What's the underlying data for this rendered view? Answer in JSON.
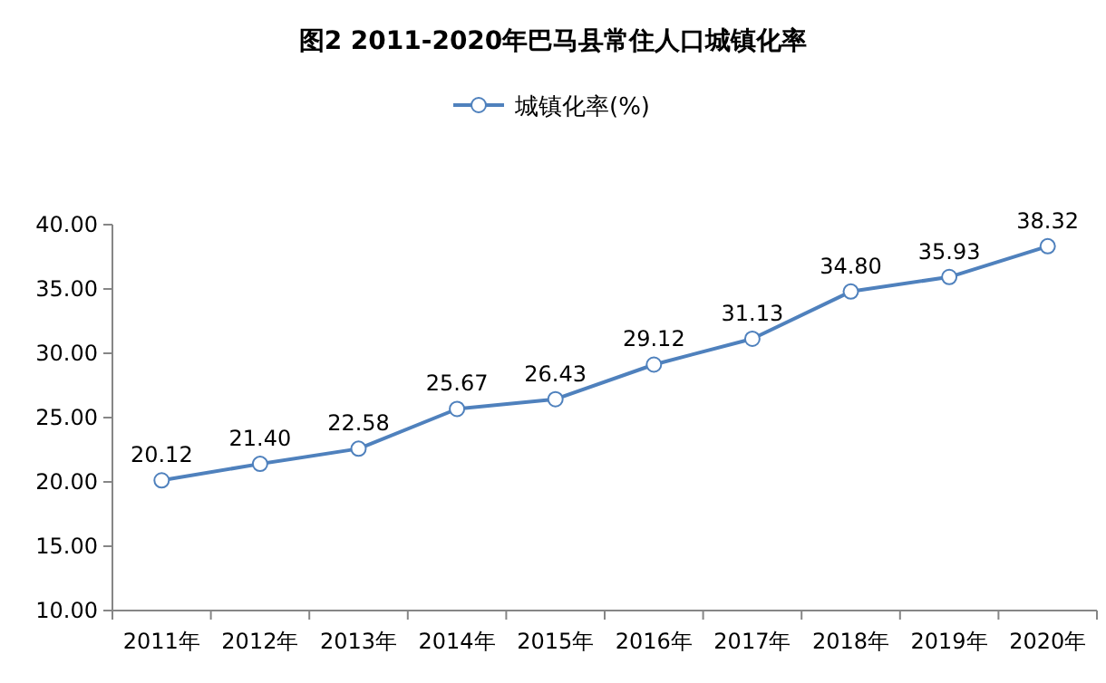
{
  "chart_data": {
    "type": "line",
    "title": "图2 2011-2020年巴马县常住人口城镇化率",
    "categories": [
      "2011年",
      "2012年",
      "2013年",
      "2014年",
      "2015年",
      "2016年",
      "2017年",
      "2018年",
      "2019年",
      "2020年"
    ],
    "series": [
      {
        "name": "城镇化率(%)",
        "color": "#4f81bd",
        "values": [
          20.12,
          21.4,
          22.58,
          25.67,
          26.43,
          29.12,
          31.13,
          34.8,
          35.93,
          38.32
        ],
        "value_labels": [
          "20.12",
          "21.40",
          "22.58",
          "25.67",
          "26.43",
          "29.12",
          "31.13",
          "34.80",
          "35.93",
          "38.32"
        ]
      }
    ],
    "ylim": [
      10,
      40
    ],
    "yticks": [
      {
        "value": 10,
        "label": "10.00"
      },
      {
        "value": 15,
        "label": "15.00"
      },
      {
        "value": 20,
        "label": "20.00"
      },
      {
        "value": 25,
        "label": "25.00"
      },
      {
        "value": 30,
        "label": "30.00"
      },
      {
        "value": 35,
        "label": "35.00"
      },
      {
        "value": 40,
        "label": "40.00"
      }
    ],
    "grid": false,
    "legend": "top",
    "marker": "circle",
    "line_style": "solid"
  }
}
